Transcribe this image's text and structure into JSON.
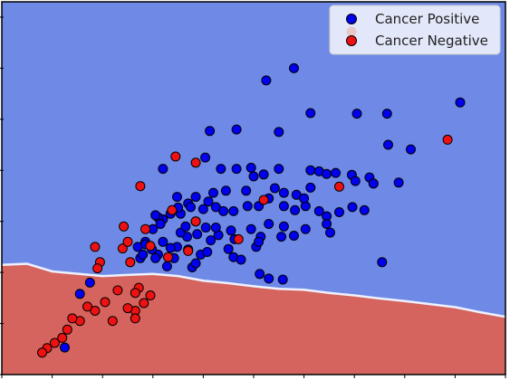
{
  "chart_data": {
    "type": "scatter",
    "title": "",
    "xlabel": "",
    "ylabel": "",
    "xlim": [
      0,
      10
    ],
    "ylim": [
      0,
      7.3
    ],
    "legend_position": "top-right",
    "decision_regions": {
      "upper_color": "#6f8ae6",
      "lower_color": "#d5645e",
      "boundary_color": "#eef1ff",
      "boundary": [
        [
          0,
          2.15
        ],
        [
          0.5,
          2.17
        ],
        [
          1,
          2.02
        ],
        [
          2,
          1.93
        ],
        [
          2.5,
          1.95
        ],
        [
          3,
          1.97
        ],
        [
          3.5,
          1.93
        ],
        [
          4,
          1.84
        ],
        [
          4.5,
          1.79
        ],
        [
          5,
          1.73
        ],
        [
          5.5,
          1.68
        ],
        [
          6,
          1.66
        ],
        [
          6.5,
          1.6
        ],
        [
          7,
          1.55
        ],
        [
          7.5,
          1.49
        ],
        [
          8,
          1.44
        ],
        [
          8.5,
          1.38
        ],
        [
          9,
          1.32
        ],
        [
          9.5,
          1.22
        ],
        [
          10,
          1.13
        ]
      ]
    },
    "series": [
      {
        "name": "Cancer Positive",
        "color": "#0000ee",
        "points": [
          [
            5.8,
            6.0
          ],
          [
            5.25,
            5.76
          ],
          [
            7.65,
            5.11
          ],
          [
            6.13,
            5.12
          ],
          [
            7.05,
            5.11
          ],
          [
            9.1,
            5.33
          ],
          [
            4.13,
            4.77
          ],
          [
            4.66,
            4.8
          ],
          [
            5.5,
            4.75
          ],
          [
            7.67,
            4.5
          ],
          [
            8.12,
            4.41
          ],
          [
            3.2,
            4.03
          ],
          [
            4.04,
            4.25
          ],
          [
            4.35,
            4.03
          ],
          [
            4.66,
            4.03
          ],
          [
            4.95,
            4.05
          ],
          [
            5.5,
            4.03
          ],
          [
            6.13,
            4.0
          ],
          [
            6.13,
            3.66
          ],
          [
            6.3,
            3.98
          ],
          [
            6.45,
            3.93
          ],
          [
            6.63,
            3.95
          ],
          [
            6.95,
            3.91
          ],
          [
            7.3,
            3.86
          ],
          [
            7.38,
            3.74
          ],
          [
            7.88,
            3.76
          ],
          [
            7.38,
            3.74
          ],
          [
            7.02,
            3.79
          ],
          [
            5.0,
            3.88
          ],
          [
            5.2,
            3.92
          ],
          [
            5.42,
            3.65
          ],
          [
            5.6,
            3.56
          ],
          [
            5.85,
            3.52
          ],
          [
            4.85,
            3.6
          ],
          [
            4.45,
            3.6
          ],
          [
            4.2,
            3.56
          ],
          [
            4.1,
            3.39
          ],
          [
            3.7,
            3.35
          ],
          [
            3.85,
            3.48
          ],
          [
            3.48,
            3.48
          ],
          [
            3.55,
            3.15
          ],
          [
            3.2,
            3.04
          ],
          [
            3.1,
            3.08
          ],
          [
            3.05,
            3.12
          ],
          [
            3.35,
            3.15
          ],
          [
            3.5,
            3.27
          ],
          [
            3.75,
            3.28
          ],
          [
            4.0,
            3.24
          ],
          [
            4.25,
            3.28
          ],
          [
            4.4,
            3.2
          ],
          [
            4.6,
            3.2
          ],
          [
            4.88,
            3.3
          ],
          [
            5.1,
            3.3
          ],
          [
            5.3,
            3.45
          ],
          [
            5.6,
            3.3
          ],
          [
            5.82,
            3.22
          ],
          [
            6.03,
            3.3
          ],
          [
            6.3,
            3.2
          ],
          [
            6.45,
            3.1
          ],
          [
            6.7,
            3.18
          ],
          [
            6.96,
            3.28
          ],
          [
            7.2,
            3.22
          ],
          [
            6.45,
            2.95
          ],
          [
            6.52,
            2.78
          ],
          [
            6.03,
            2.85
          ],
          [
            5.6,
            2.9
          ],
          [
            5.3,
            2.95
          ],
          [
            5.14,
            2.7
          ],
          [
            5.05,
            2.5
          ],
          [
            4.62,
            2.65
          ],
          [
            4.3,
            2.73
          ],
          [
            4.25,
            2.88
          ],
          [
            4.05,
            2.88
          ],
          [
            3.88,
            2.75
          ],
          [
            3.68,
            2.7
          ],
          [
            3.55,
            2.78
          ],
          [
            3.48,
            2.5
          ],
          [
            3.42,
            2.28
          ],
          [
            3.35,
            2.48
          ],
          [
            3.2,
            2.6
          ],
          [
            3.1,
            2.35
          ],
          [
            2.98,
            2.45
          ],
          [
            2.85,
            2.6
          ],
          [
            2.7,
            2.5
          ],
          [
            2.75,
            2.28
          ],
          [
            3.05,
            2.28
          ],
          [
            3.28,
            2.12
          ],
          [
            3.78,
            2.1
          ],
          [
            3.95,
            2.35
          ],
          [
            3.7,
            2.45
          ],
          [
            4.55,
            2.82
          ],
          [
            4.5,
            2.46
          ],
          [
            4.6,
            2.3
          ],
          [
            4.75,
            2.25
          ],
          [
            5.8,
            2.72
          ],
          [
            5.55,
            2.7
          ],
          [
            5.1,
            2.6
          ],
          [
            4.95,
            2.85
          ],
          [
            4.08,
            2.4
          ],
          [
            4.15,
            2.63
          ],
          [
            3.85,
            2.18
          ],
          [
            5.12,
            1.97
          ],
          [
            5.3,
            1.88
          ],
          [
            5.58,
            1.86
          ],
          [
            7.55,
            2.2
          ],
          [
            2.8,
            2.35
          ],
          [
            2.85,
            2.55
          ],
          [
            1.75,
            1.8
          ],
          [
            1.55,
            1.58
          ],
          [
            1.25,
            0.53
          ],
          [
            3.0,
            2.85
          ],
          [
            3.15,
            2.95
          ],
          [
            3.85,
            3.0
          ],
          [
            3.65,
            2.9
          ],
          [
            6.0,
            3.45
          ]
        ]
      },
      {
        "name": "Cancer Negative",
        "color": "#ee1111",
        "points": [
          [
            3.45,
            4.27
          ],
          [
            3.85,
            4.15
          ],
          [
            8.85,
            4.6
          ],
          [
            2.75,
            3.69
          ],
          [
            6.7,
            3.68
          ],
          [
            5.2,
            3.42
          ],
          [
            3.38,
            3.22
          ],
          [
            2.85,
            2.85
          ],
          [
            3.85,
            3.0
          ],
          [
            2.42,
            2.9
          ],
          [
            1.85,
            2.5
          ],
          [
            2.4,
            2.47
          ],
          [
            2.5,
            2.6
          ],
          [
            2.55,
            2.2
          ],
          [
            3.3,
            2.3
          ],
          [
            3.7,
            2.42
          ],
          [
            2.95,
            2.52
          ],
          [
            1.95,
            2.2
          ],
          [
            1.9,
            2.08
          ],
          [
            4.7,
            2.65
          ],
          [
            2.72,
            1.7
          ],
          [
            2.65,
            1.6
          ],
          [
            2.95,
            1.55
          ],
          [
            2.82,
            1.4
          ],
          [
            2.65,
            1.25
          ],
          [
            2.5,
            1.3
          ],
          [
            2.3,
            1.65
          ],
          [
            2.05,
            1.42
          ],
          [
            1.85,
            1.25
          ],
          [
            1.7,
            1.33
          ],
          [
            1.55,
            1.05
          ],
          [
            1.4,
            1.1
          ],
          [
            2.2,
            1.05
          ],
          [
            2.65,
            1.1
          ],
          [
            1.3,
            0.88
          ],
          [
            1.2,
            0.72
          ],
          [
            1.05,
            0.62
          ],
          [
            0.9,
            0.52
          ],
          [
            0.8,
            0.43
          ]
        ]
      }
    ]
  }
}
